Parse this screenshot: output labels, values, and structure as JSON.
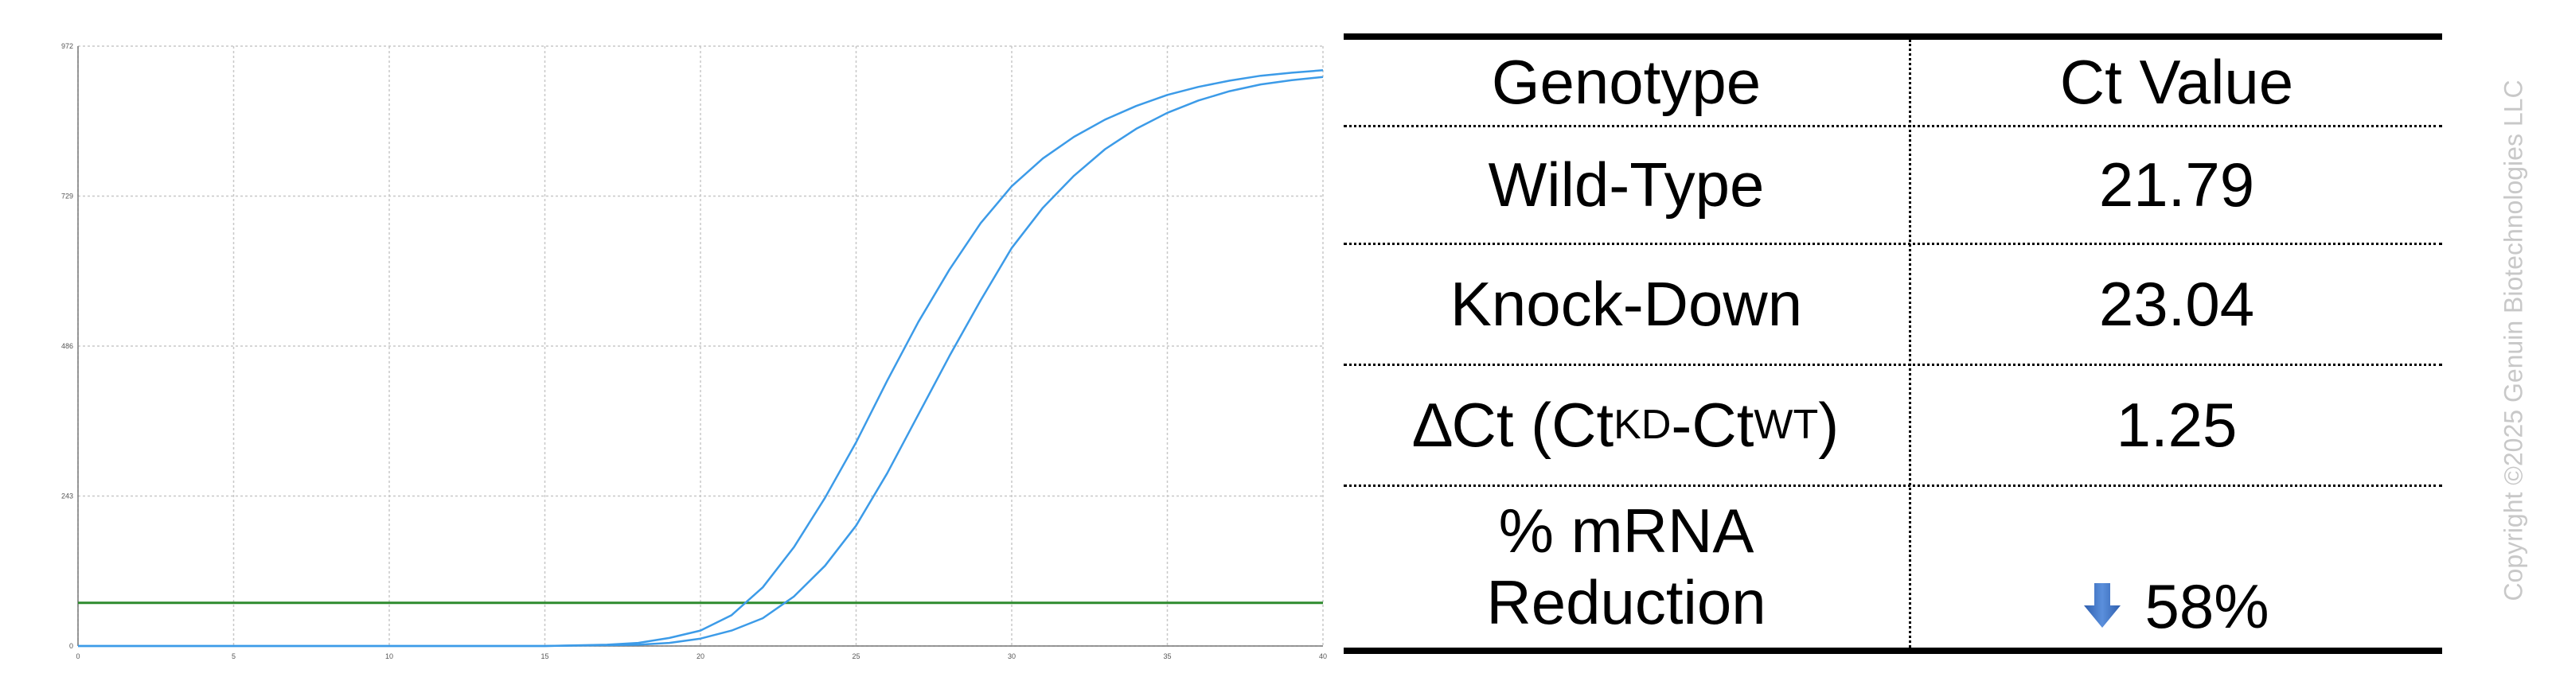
{
  "chart_data": {
    "type": "line",
    "title": "",
    "xlabel": "",
    "ylabel": "",
    "xlim": [
      0,
      40
    ],
    "ylim": [
      0,
      972
    ],
    "x_ticks": [
      "0",
      "5",
      "10",
      "15",
      "20",
      "25",
      "30",
      "35",
      "40"
    ],
    "y_ticks": [
      "0",
      "243",
      "486",
      "729",
      "972"
    ],
    "grid": true,
    "series": [
      {
        "color": "#3c9be8",
        "x": [
          0,
          5,
          10,
          15,
          17,
          18,
          19,
          20,
          21,
          22,
          23,
          24,
          25,
          26,
          27,
          28,
          29,
          30,
          31,
          32,
          33,
          34,
          35,
          36,
          37,
          38,
          39,
          40
        ],
        "y": [
          0,
          0,
          0,
          0,
          2,
          5,
          13,
          25,
          50,
          95,
          160,
          240,
          330,
          430,
          525,
          610,
          685,
          745,
          790,
          825,
          853,
          875,
          893,
          906,
          916,
          924,
          929,
          933
        ]
      },
      {
        "color": "#3c9be8",
        "x": [
          0,
          5,
          10,
          15,
          18,
          19,
          20,
          21,
          22,
          23,
          24,
          25,
          26,
          27,
          28,
          29,
          30,
          31,
          32,
          33,
          34,
          35,
          36,
          37,
          38,
          39,
          40
        ],
        "y": [
          0,
          0,
          0,
          0,
          2,
          5,
          12,
          25,
          45,
          80,
          130,
          195,
          280,
          375,
          470,
          560,
          645,
          710,
          762,
          805,
          838,
          864,
          884,
          899,
          910,
          917,
          922
        ]
      }
    ],
    "threshold": {
      "y": 70,
      "color": "#2e8b2e"
    }
  },
  "table": {
    "headers": [
      "Genotype",
      "Ct Value"
    ],
    "wt_label": "Wild-Type",
    "wt_value": "21.79",
    "kd_label": "Knock-Down",
    "kd_value": "23.04",
    "dct_main": "∆Ct (Ct",
    "dct_sub1": "KD",
    "dct_mid": "-Ct",
    "dct_sub2": "WT",
    "dct_end": ")",
    "dct_value": "1.25",
    "red_line1": "% mRNA",
    "red_line2": "Reduction",
    "red_value": "58%",
    "arrow_icon": "down-arrow-icon",
    "arrow_color": "#3a6fc4"
  },
  "copyright": "Copyright ©2025 Genuin Biotechnologies LLC"
}
